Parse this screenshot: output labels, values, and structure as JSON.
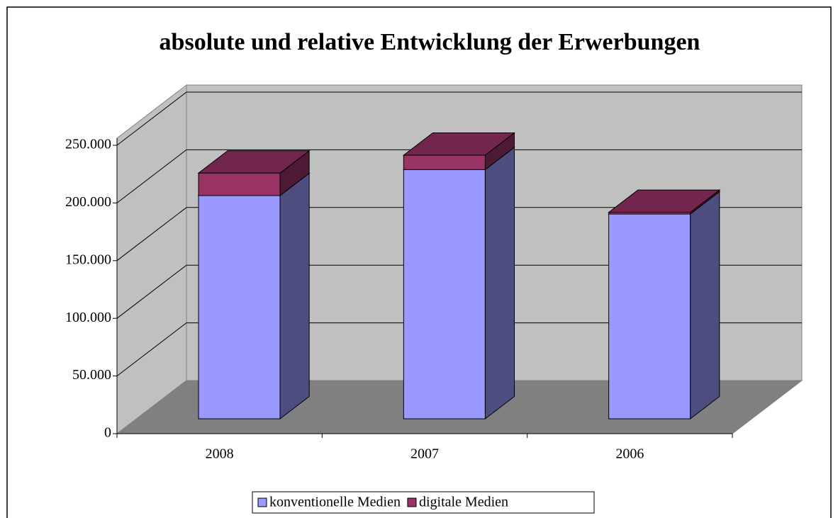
{
  "chart_data": {
    "type": "bar3d_stacked",
    "title": "absolute und relative Entwicklung der Erwerbungen",
    "categories": [
      "2008",
      "2007",
      "2006"
    ],
    "series": [
      {
        "name": "konventionelle Medien",
        "color": "#9999ff",
        "values": [
          193500,
          216000,
          177500
        ]
      },
      {
        "name": "digitale Medien",
        "color": "#993366",
        "values": [
          19500,
          12500,
          1500
        ]
      }
    ],
    "ylim": [
      0,
      250000
    ],
    "yticks": [
      0,
      {
        "value": 50000,
        "label": "50.000"
      },
      {
        "value": 100000,
        "label": "100.000"
      },
      {
        "value": 150000,
        "label": "150.000"
      },
      {
        "value": 200000,
        "label": "200.000"
      },
      {
        "value": 250000,
        "label": "250.000"
      }
    ],
    "grid": true,
    "legend": "bottom"
  }
}
